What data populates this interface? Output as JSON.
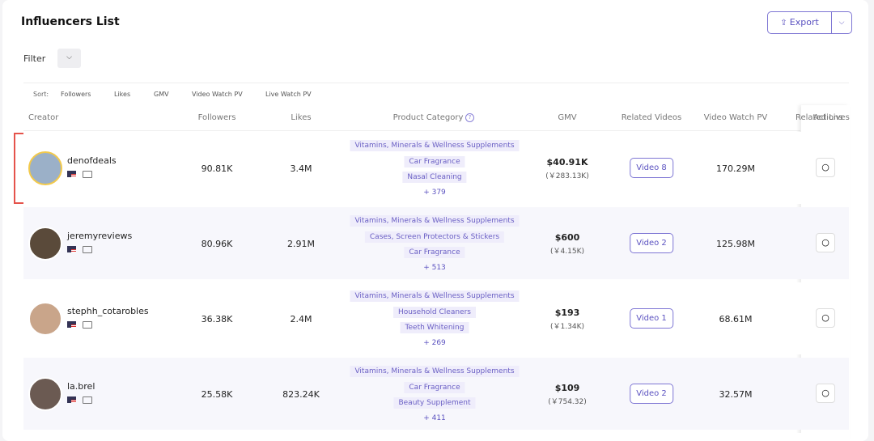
{
  "header": {
    "title": "Influencers List",
    "export": "Export"
  },
  "filter": {
    "label": "Filter"
  },
  "sort": {
    "label": "Sort:",
    "options": [
      "Followers",
      "Likes",
      "GMV",
      "Video Watch PV",
      "Live Watch PV"
    ]
  },
  "table": {
    "columns": [
      "Creator",
      "Followers",
      "Likes",
      "Product Category",
      "GMV",
      "Related Videos",
      "Video Watch PV",
      "Related Lives",
      "Actions"
    ],
    "rows": [
      {
        "name": "denofdeals",
        "followers": "90.81K",
        "likes": "3.4M",
        "categories": [
          "Vitamins, Minerals & Wellness Supplements",
          "Car Fragrance",
          "Nasal Cleaning"
        ],
        "more": "+ 379",
        "gmv": "$40.91K",
        "gmv_local": "(￥283.13K)",
        "videos": "Video 8",
        "video_pv": "170.29M"
      },
      {
        "name": "jeremyreviews",
        "followers": "80.96K",
        "likes": "2.91M",
        "categories": [
          "Vitamins, Minerals & Wellness Supplements",
          "Cases, Screen Protectors & Stickers",
          "Car Fragrance"
        ],
        "more": "+ 513",
        "gmv": "$600",
        "gmv_local": "(￥4.15K)",
        "videos": "Video 2",
        "video_pv": "125.98M"
      },
      {
        "name": "stephh_cotarobles",
        "followers": "36.38K",
        "likes": "2.4M",
        "categories": [
          "Vitamins, Minerals & Wellness Supplements",
          "Household Cleaners",
          "Teeth Whitening"
        ],
        "more": "+ 269",
        "gmv": "$193",
        "gmv_local": "(￥1.34K)",
        "videos": "Video 1",
        "video_pv": "68.61M"
      },
      {
        "name": "la.brel",
        "followers": "25.58K",
        "likes": "823.24K",
        "categories": [
          "Vitamins, Minerals & Wellness Supplements",
          "Car Fragrance",
          "Beauty Supplement"
        ],
        "more": "+ 411",
        "gmv": "$109",
        "gmv_local": "(￥754.32)",
        "videos": "Video 2",
        "video_pv": "32.57M"
      }
    ]
  }
}
